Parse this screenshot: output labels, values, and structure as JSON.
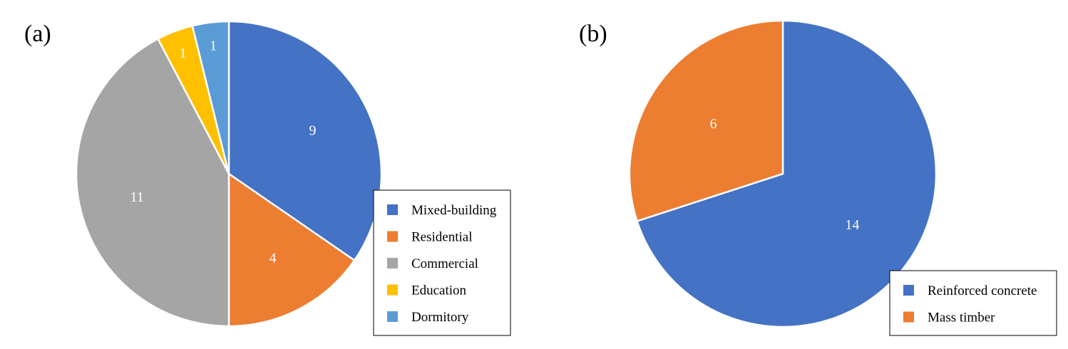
{
  "chart_data": [
    {
      "type": "pie",
      "panel_label": "(a)",
      "categories": [
        "Mixed-building",
        "Residential",
        "Commercial",
        "Education",
        "Dormitory"
      ],
      "values": [
        9,
        4,
        11,
        1,
        1
      ],
      "colors": [
        "#4472C4",
        "#ED7D31",
        "#A5A5A5",
        "#FFC000",
        "#5B9BD5"
      ],
      "data_labels": [
        "9",
        "4",
        "11",
        "1",
        "1"
      ],
      "start_angle": "12 o'clock",
      "direction": "clockwise",
      "legend_position": "bottom-right"
    },
    {
      "type": "pie",
      "panel_label": "(b)",
      "categories": [
        "Reinforced concrete",
        "Mass timber"
      ],
      "values": [
        14,
        6
      ],
      "colors": [
        "#4472C4",
        "#ED7D31"
      ],
      "data_labels": [
        "14",
        "6"
      ],
      "start_angle": "12 o'clock",
      "direction": "clockwise",
      "legend_position": "bottom-right"
    }
  ]
}
